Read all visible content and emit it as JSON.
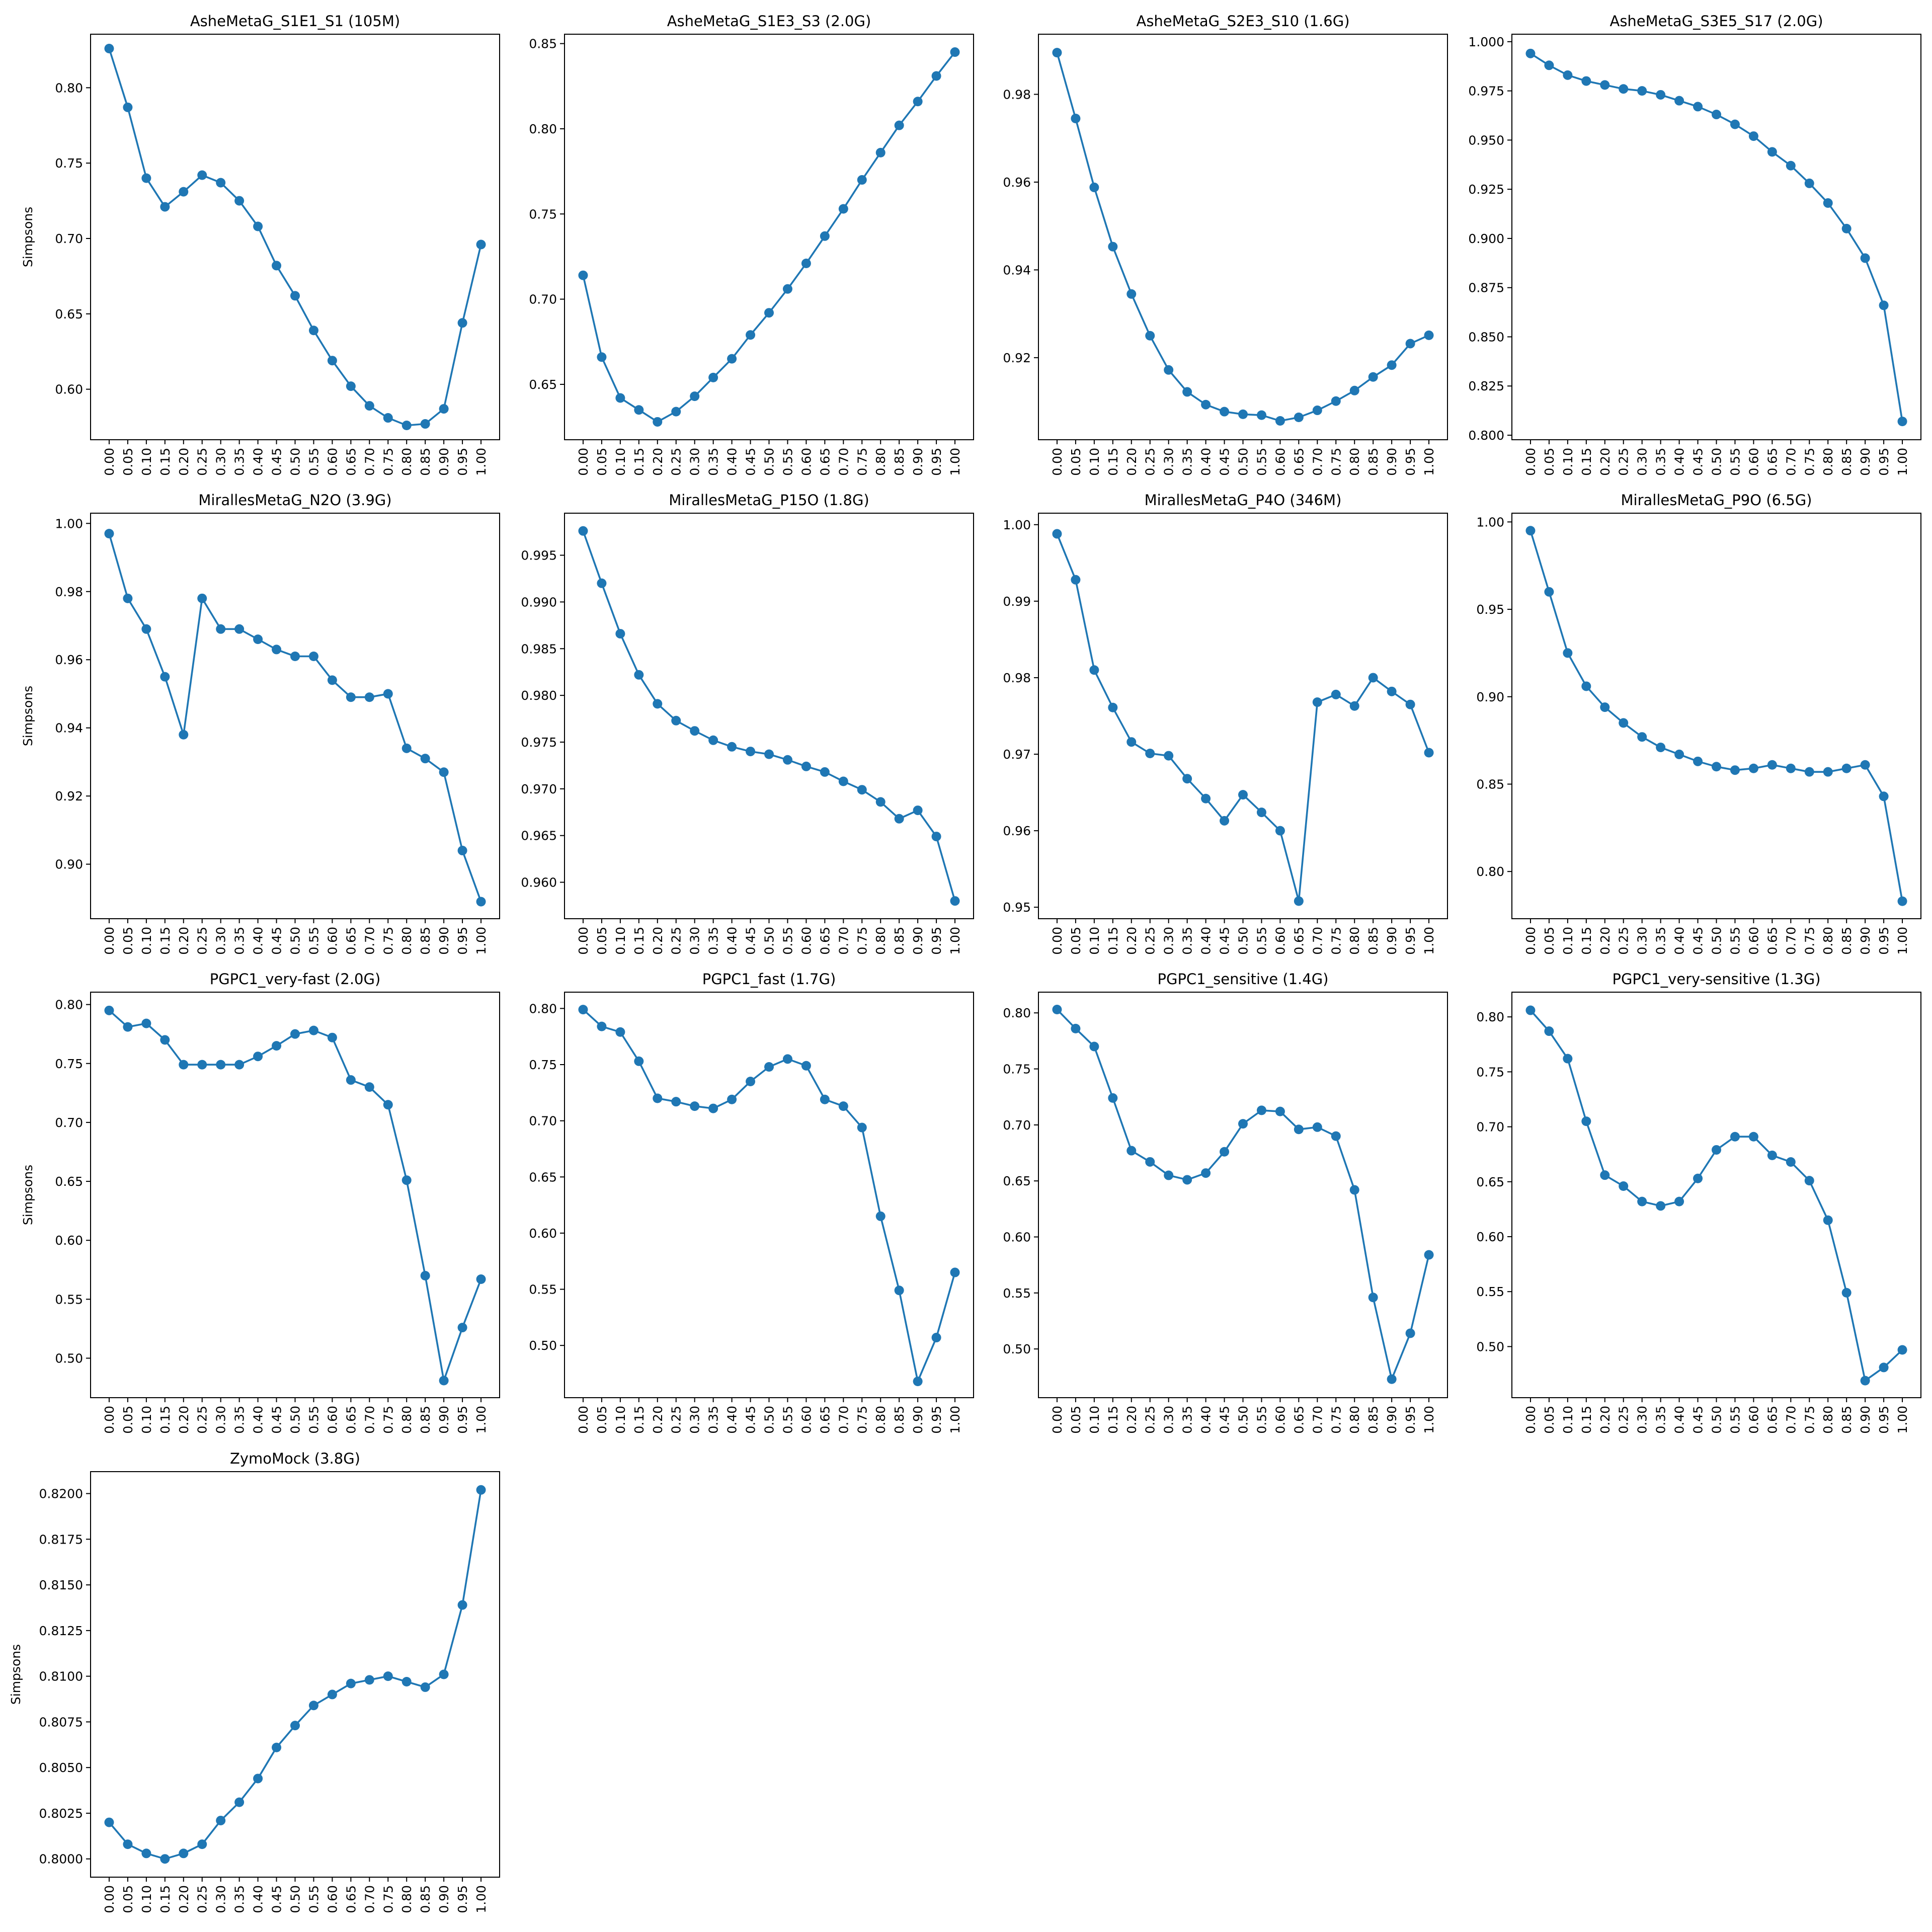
{
  "chart_data": [
    {
      "type": "line",
      "title": "AsheMetaG_S1E1_S1 (105M)",
      "ylabel": "Simpsons",
      "ylim": [
        0.5665,
        0.8355
      ],
      "yticks": [
        0.6,
        0.65,
        0.7,
        0.75,
        0.8
      ],
      "ytick_labels": [
        "0.60",
        "0.65",
        "0.70",
        "0.75",
        "0.80"
      ],
      "values": [
        0.826,
        0.787,
        0.74,
        0.721,
        0.731,
        0.742,
        0.737,
        0.725,
        0.708,
        0.682,
        0.662,
        0.639,
        0.619,
        0.602,
        0.589,
        0.581,
        0.576,
        0.577,
        0.587,
        0.644,
        0.696
      ]
    },
    {
      "type": "line",
      "title": "AsheMetaG_S1E3_S3 (2.0G)",
      "ylabel": "",
      "ylim": [
        0.6175,
        0.8555
      ],
      "yticks": [
        0.65,
        0.7,
        0.75,
        0.8,
        0.85
      ],
      "ytick_labels": [
        "0.65",
        "0.70",
        "0.75",
        "0.80",
        "0.85"
      ],
      "values": [
        0.714,
        0.666,
        0.642,
        0.635,
        0.628,
        0.634,
        0.643,
        0.654,
        0.665,
        0.679,
        0.692,
        0.706,
        0.721,
        0.737,
        0.753,
        0.77,
        0.786,
        0.802,
        0.816,
        0.831,
        0.845
      ]
    },
    {
      "type": "line",
      "title": "AsheMetaG_S2E3_S10 (1.6G)",
      "ylabel": "",
      "ylim": [
        0.9013,
        0.9937
      ],
      "yticks": [
        0.92,
        0.94,
        0.96,
        0.98
      ],
      "ytick_labels": [
        "0.92",
        "0.94",
        "0.96",
        "0.98"
      ],
      "values": [
        0.9895,
        0.9745,
        0.9588,
        0.9453,
        0.9345,
        0.925,
        0.9172,
        0.9122,
        0.9093,
        0.9077,
        0.9071,
        0.9069,
        0.9056,
        0.9064,
        0.908,
        0.9101,
        0.9125,
        0.9156,
        0.9183,
        0.9232,
        0.9251
      ]
    },
    {
      "type": "line",
      "title": "AsheMetaG_S3E5_S17 (2.0G)",
      "ylabel": "",
      "ylim": [
        0.7977,
        1.0038
      ],
      "yticks": [
        0.8,
        0.825,
        0.85,
        0.875,
        0.9,
        0.925,
        0.95,
        0.975,
        1.0
      ],
      "ytick_labels": [
        "0.800",
        "0.825",
        "0.850",
        "0.875",
        "0.900",
        "0.925",
        "0.950",
        "0.975",
        "1.000"
      ],
      "values": [
        0.994,
        0.988,
        0.983,
        0.98,
        0.978,
        0.976,
        0.975,
        0.973,
        0.97,
        0.967,
        0.963,
        0.958,
        0.952,
        0.944,
        0.937,
        0.928,
        0.918,
        0.905,
        0.89,
        0.866,
        0.807
      ]
    },
    {
      "type": "line",
      "title": "MirallesMetaG_N2O (3.9G)",
      "ylabel": "Simpsons",
      "ylim": [
        0.884,
        1.003
      ],
      "yticks": [
        0.9,
        0.92,
        0.94,
        0.96,
        0.98,
        1.0
      ],
      "ytick_labels": [
        "0.90",
        "0.92",
        "0.94",
        "0.96",
        "0.98",
        "1.00"
      ],
      "values": [
        0.997,
        0.978,
        0.969,
        0.955,
        0.938,
        0.978,
        0.969,
        0.969,
        0.966,
        0.963,
        0.961,
        0.961,
        0.954,
        0.949,
        0.949,
        0.95,
        0.934,
        0.931,
        0.927,
        0.904,
        0.889
      ]
    },
    {
      "type": "line",
      "title": "MirallesMetaG_P15O (1.8G)",
      "ylabel": "",
      "ylim": [
        0.9561,
        0.9995
      ],
      "yticks": [
        0.96,
        0.965,
        0.97,
        0.975,
        0.98,
        0.985,
        0.99,
        0.995
      ],
      "ytick_labels": [
        "0.960",
        "0.965",
        "0.970",
        "0.975",
        "0.980",
        "0.985",
        "0.990",
        "0.995"
      ],
      "values": [
        0.9976,
        0.992,
        0.9866,
        0.9822,
        0.9791,
        0.9773,
        0.9762,
        0.9752,
        0.9745,
        0.974,
        0.9737,
        0.9731,
        0.9724,
        0.9718,
        0.9708,
        0.9699,
        0.9686,
        0.9668,
        0.9677,
        0.9649,
        0.958
      ]
    },
    {
      "type": "line",
      "title": "MirallesMetaG_P4O (346M)",
      "ylabel": "",
      "ylim": [
        0.9485,
        1.0015
      ],
      "yticks": [
        0.95,
        0.96,
        0.97,
        0.98,
        0.99,
        1.0
      ],
      "ytick_labels": [
        "0.95",
        "0.96",
        "0.97",
        "0.98",
        "0.99",
        "1.00"
      ],
      "values": [
        0.9988,
        0.9928,
        0.981,
        0.9761,
        0.9716,
        0.9701,
        0.9698,
        0.9668,
        0.9642,
        0.9613,
        0.9647,
        0.9624,
        0.96,
        0.9508,
        0.9768,
        0.9778,
        0.9763,
        0.98,
        0.9782,
        0.9765,
        0.9702
      ]
    },
    {
      "type": "line",
      "title": "MirallesMetaG_P9O (6.5G)",
      "ylabel": "",
      "ylim": [
        0.773,
        1.005
      ],
      "yticks": [
        0.8,
        0.85,
        0.9,
        0.95,
        1.0
      ],
      "ytick_labels": [
        "0.80",
        "0.85",
        "0.90",
        "0.95",
        "1.00"
      ],
      "values": [
        0.995,
        0.96,
        0.925,
        0.906,
        0.894,
        0.885,
        0.877,
        0.871,
        0.867,
        0.863,
        0.86,
        0.858,
        0.859,
        0.861,
        0.859,
        0.857,
        0.857,
        0.859,
        0.861,
        0.843,
        0.783
      ]
    },
    {
      "type": "line",
      "title": "PGPC1_very-fast (2.0G)",
      "ylabel": "Simpsons",
      "ylim": [
        0.4665,
        0.8105
      ],
      "yticks": [
        0.5,
        0.55,
        0.6,
        0.65,
        0.7,
        0.75,
        0.8
      ],
      "ytick_labels": [
        "0.50",
        "0.55",
        "0.60",
        "0.65",
        "0.70",
        "0.75",
        "0.80"
      ],
      "values": [
        0.795,
        0.781,
        0.784,
        0.77,
        0.749,
        0.749,
        0.749,
        0.749,
        0.756,
        0.765,
        0.775,
        0.778,
        0.772,
        0.736,
        0.73,
        0.715,
        0.651,
        0.57,
        0.481,
        0.526,
        0.567
      ]
    },
    {
      "type": "line",
      "title": "PGPC1_fast (1.7G)",
      "ylabel": "",
      "ylim": [
        0.4535,
        0.8145
      ],
      "yticks": [
        0.5,
        0.55,
        0.6,
        0.65,
        0.7,
        0.75,
        0.8
      ],
      "ytick_labels": [
        "0.50",
        "0.55",
        "0.60",
        "0.65",
        "0.70",
        "0.75",
        "0.80"
      ],
      "values": [
        0.799,
        0.784,
        0.779,
        0.753,
        0.72,
        0.717,
        0.713,
        0.711,
        0.719,
        0.735,
        0.748,
        0.755,
        0.749,
        0.719,
        0.713,
        0.694,
        0.615,
        0.549,
        0.468,
        0.507,
        0.565
      ]
    },
    {
      "type": "line",
      "title": "PGPC1_sensitive (1.4G)",
      "ylabel": "",
      "ylim": [
        0.4565,
        0.8185
      ],
      "yticks": [
        0.5,
        0.55,
        0.6,
        0.65,
        0.7,
        0.75,
        0.8
      ],
      "ytick_labels": [
        "0.50",
        "0.55",
        "0.60",
        "0.65",
        "0.70",
        "0.75",
        "0.80"
      ],
      "values": [
        0.803,
        0.786,
        0.77,
        0.724,
        0.677,
        0.667,
        0.655,
        0.651,
        0.657,
        0.676,
        0.701,
        0.713,
        0.712,
        0.696,
        0.698,
        0.69,
        0.642,
        0.546,
        0.473,
        0.514,
        0.584
      ]
    },
    {
      "type": "line",
      "title": "PGPC1_very-sensitive (1.3G)",
      "ylabel": "",
      "ylim": [
        0.4535,
        0.8225
      ],
      "yticks": [
        0.5,
        0.55,
        0.6,
        0.65,
        0.7,
        0.75,
        0.8
      ],
      "ytick_labels": [
        "0.50",
        "0.55",
        "0.60",
        "0.65",
        "0.70",
        "0.75",
        "0.80"
      ],
      "values": [
        0.806,
        0.787,
        0.762,
        0.705,
        0.656,
        0.646,
        0.632,
        0.628,
        0.632,
        0.653,
        0.679,
        0.691,
        0.691,
        0.674,
        0.668,
        0.651,
        0.615,
        0.549,
        0.469,
        0.481,
        0.497
      ]
    },
    {
      "type": "line",
      "title": "ZymoMock (3.8G)",
      "ylabel": "Simpsons",
      "ylim": [
        0.799,
        0.8212
      ],
      "yticks": [
        0.8,
        0.8025,
        0.805,
        0.8075,
        0.81,
        0.8125,
        0.815,
        0.8175,
        0.82
      ],
      "ytick_labels": [
        "0.8000",
        "0.8025",
        "0.8050",
        "0.8075",
        "0.8100",
        "0.8125",
        "0.8150",
        "0.8175",
        "0.8200"
      ],
      "values": [
        0.802,
        0.8008,
        0.8003,
        0.8,
        0.8003,
        0.8008,
        0.8021,
        0.8031,
        0.8044,
        0.8061,
        0.8073,
        0.8084,
        0.809,
        0.8096,
        0.8098,
        0.81,
        0.8097,
        0.8094,
        0.8101,
        0.8139,
        0.8202
      ]
    }
  ],
  "x": [
    0.0,
    0.05,
    0.1,
    0.15,
    0.2,
    0.25,
    0.3,
    0.35,
    0.4,
    0.45,
    0.5,
    0.55,
    0.6,
    0.65,
    0.7,
    0.75,
    0.8,
    0.85,
    0.9,
    0.95,
    1.0
  ],
  "x_tick_labels": [
    "0.00",
    "0.05",
    "0.10",
    "0.15",
    "0.20",
    "0.25",
    "0.30",
    "0.35",
    "0.40",
    "0.45",
    "0.50",
    "0.55",
    "0.60",
    "0.65",
    "0.70",
    "0.75",
    "0.80",
    "0.85",
    "0.90",
    "0.95",
    "1.00"
  ],
  "xlim": [
    -0.05,
    1.05
  ],
  "line_color": "#1f77b4"
}
